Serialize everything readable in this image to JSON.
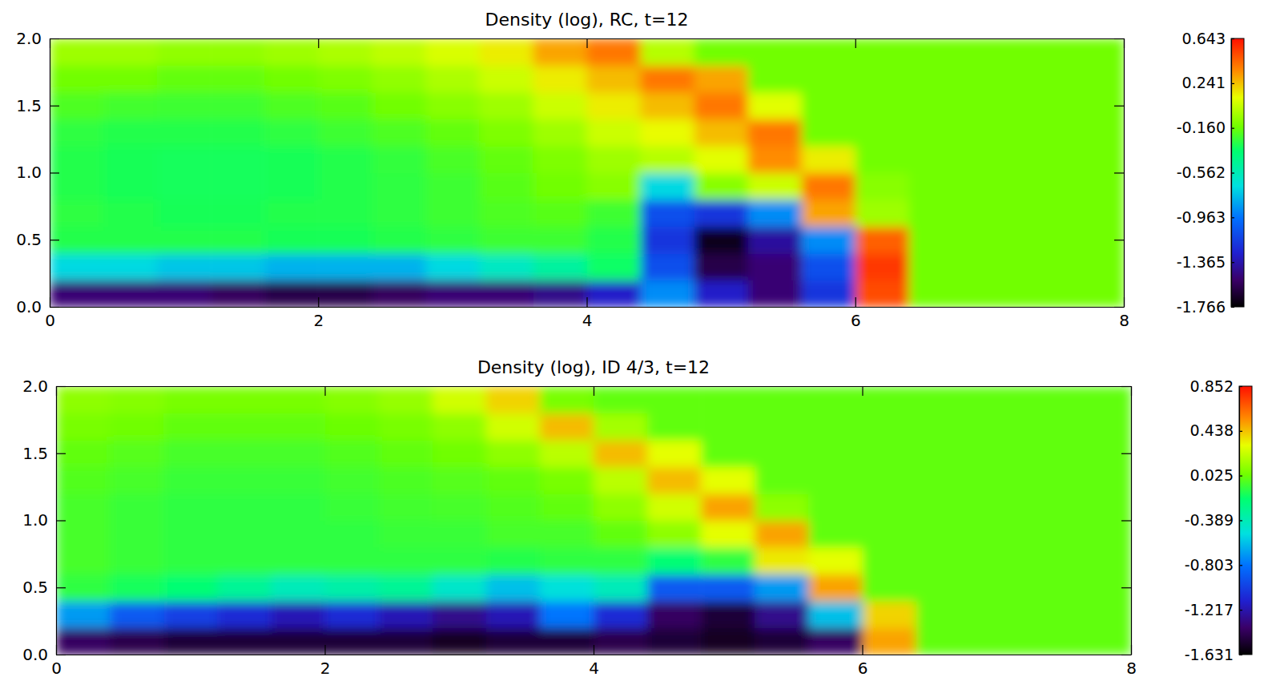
{
  "chart_data": [
    {
      "type": "heatmap",
      "title": "Density (log), RC, t=12",
      "x": [
        0.2,
        0.6,
        1.0,
        1.4,
        1.8,
        2.2,
        2.6,
        3.0,
        3.4,
        3.8,
        4.2,
        4.6,
        5.0,
        5.4,
        5.8,
        6.2,
        6.6,
        7.0,
        7.4,
        7.8
      ],
      "y": [
        0.1,
        0.3,
        0.5,
        0.7,
        0.9,
        1.1,
        1.3,
        1.5,
        1.7,
        1.9
      ],
      "values": [
        [
          -1.5,
          -1.5,
          -1.5,
          -1.55,
          -1.6,
          -1.6,
          -1.55,
          -1.5,
          -1.5,
          -1.45,
          -1.3,
          -0.9,
          -1.3,
          -1.5,
          -1.2,
          0.5,
          -0.15,
          -0.15,
          -0.15,
          -0.15
        ],
        [
          -0.7,
          -0.7,
          -0.75,
          -0.75,
          -0.8,
          -0.8,
          -0.8,
          -0.7,
          -0.6,
          -0.5,
          -0.35,
          -1.1,
          -1.6,
          -1.5,
          -1.1,
          0.55,
          -0.15,
          -0.15,
          -0.15,
          -0.15
        ],
        [
          -0.3,
          -0.3,
          -0.3,
          -0.3,
          -0.32,
          -0.32,
          -0.3,
          -0.28,
          -0.25,
          -0.25,
          -0.3,
          -1.2,
          -1.7,
          -1.4,
          -0.9,
          0.45,
          -0.15,
          -0.15,
          -0.15,
          -0.15
        ],
        [
          -0.28,
          -0.3,
          -0.32,
          -0.32,
          -0.3,
          -0.3,
          -0.28,
          -0.25,
          -0.22,
          -0.2,
          -0.25,
          -1.1,
          -1.2,
          -0.9,
          0.3,
          -0.05,
          -0.15,
          -0.15,
          -0.15,
          -0.15
        ],
        [
          -0.3,
          -0.32,
          -0.33,
          -0.33,
          -0.32,
          -0.3,
          -0.28,
          -0.25,
          -0.2,
          -0.15,
          -0.1,
          -0.7,
          -0.1,
          0.05,
          0.4,
          -0.1,
          -0.15,
          -0.15,
          -0.15,
          -0.15
        ],
        [
          -0.3,
          -0.32,
          -0.33,
          -0.33,
          -0.32,
          -0.3,
          -0.27,
          -0.23,
          -0.18,
          -0.12,
          -0.05,
          0.0,
          0.1,
          0.35,
          0.15,
          -0.15,
          -0.15,
          -0.15,
          -0.15,
          -0.15
        ],
        [
          -0.28,
          -0.3,
          -0.3,
          -0.3,
          -0.28,
          -0.25,
          -0.22,
          -0.18,
          -0.12,
          -0.05,
          0.05,
          0.12,
          0.25,
          0.4,
          -0.15,
          -0.15,
          -0.15,
          -0.15,
          -0.15,
          -0.15
        ],
        [
          -0.22,
          -0.24,
          -0.25,
          -0.25,
          -0.22,
          -0.2,
          -0.15,
          -0.1,
          -0.05,
          0.05,
          0.15,
          0.25,
          0.4,
          0.1,
          -0.15,
          -0.15,
          -0.15,
          -0.15,
          -0.15,
          -0.15
        ],
        [
          -0.15,
          -0.15,
          -0.18,
          -0.18,
          -0.15,
          -0.12,
          -0.08,
          -0.02,
          0.05,
          0.15,
          0.25,
          0.4,
          0.3,
          -0.15,
          -0.15,
          -0.15,
          -0.15,
          -0.15,
          -0.15,
          -0.15
        ],
        [
          -0.05,
          -0.05,
          -0.08,
          -0.08,
          -0.05,
          -0.02,
          0.02,
          0.08,
          0.15,
          0.3,
          0.4,
          0.0,
          -0.15,
          -0.15,
          -0.15,
          -0.15,
          -0.15,
          -0.15,
          -0.15,
          -0.15
        ]
      ],
      "xlim": [
        0,
        8
      ],
      "ylim": [
        0,
        2
      ],
      "xticks": [
        0,
        2,
        4,
        6,
        8
      ],
      "yticks": [
        {
          "value": 0,
          "label": "0.0"
        },
        0.5,
        {
          "value": 1,
          "label": "1.0"
        },
        1.5,
        {
          "value": 2,
          "label": "2.0"
        }
      ],
      "colorbar_range": [
        -1.766,
        0.643
      ],
      "colorbar_ticks": [
        0.643,
        0.241,
        {
          "value": -0.16,
          "label": "-0.160"
        },
        -0.562,
        -0.963,
        -1.365,
        -1.766
      ]
    },
    {
      "type": "heatmap",
      "title": "Density (log), ID 4/3, t=12",
      "x": [
        0.2,
        0.6,
        1.0,
        1.4,
        1.8,
        2.2,
        2.6,
        3.0,
        3.4,
        3.8,
        4.2,
        4.6,
        5.0,
        5.4,
        5.8,
        6.2,
        6.6,
        7.0,
        7.4,
        7.8
      ],
      "y": [
        0.1,
        0.3,
        0.5,
        0.7,
        0.9,
        1.1,
        1.3,
        1.5,
        1.7,
        1.9
      ],
      "values": [
        [
          -1.4,
          -1.45,
          -1.5,
          -1.5,
          -1.5,
          -1.5,
          -1.5,
          -1.55,
          -1.5,
          -1.5,
          -1.45,
          -1.5,
          -1.55,
          -1.5,
          -1.4,
          0.5,
          0,
          0,
          0,
          0
        ],
        [
          -0.7,
          -0.9,
          -1.0,
          -1.1,
          -1.2,
          -1.1,
          -1.2,
          -1.3,
          -1.2,
          -0.8,
          -1.1,
          -1.4,
          -1.5,
          -1.3,
          -0.6,
          0.4,
          0,
          0,
          0,
          0
        ],
        [
          -0.1,
          -0.15,
          -0.2,
          -0.3,
          -0.4,
          -0.35,
          -0.3,
          -0.45,
          -0.6,
          -0.5,
          -0.4,
          -0.9,
          -0.9,
          -0.7,
          0.5,
          0.0,
          0,
          0,
          0,
          0
        ],
        [
          -0.05,
          -0.08,
          -0.1,
          -0.1,
          -0.1,
          -0.1,
          -0.1,
          -0.1,
          -0.12,
          -0.1,
          -0.1,
          -0.2,
          -0.1,
          0.35,
          0.3,
          0,
          0,
          0,
          0,
          0
        ],
        [
          -0.05,
          -0.08,
          -0.1,
          -0.1,
          -0.1,
          -0.1,
          -0.08,
          -0.08,
          -0.05,
          -0.05,
          0.0,
          0.1,
          0.3,
          0.5,
          0,
          0,
          0,
          0,
          0,
          0
        ],
        [
          -0.05,
          -0.08,
          -0.1,
          -0.1,
          -0.1,
          -0.08,
          -0.06,
          -0.05,
          -0.03,
          0.0,
          0.1,
          0.25,
          0.5,
          0.1,
          0,
          0,
          0,
          0,
          0,
          0
        ],
        [
          -0.03,
          -0.05,
          -0.08,
          -0.08,
          -0.08,
          -0.06,
          -0.04,
          -0.02,
          0.0,
          0.05,
          0.2,
          0.45,
          0.3,
          0,
          0,
          0,
          0,
          0,
          0,
          0
        ],
        [
          0.0,
          -0.02,
          -0.05,
          -0.05,
          -0.05,
          -0.03,
          0.0,
          0.03,
          0.1,
          0.2,
          0.45,
          0.3,
          0,
          0,
          0,
          0,
          0,
          0,
          0,
          0
        ],
        [
          0.05,
          0.03,
          0.0,
          0.0,
          0.0,
          0.02,
          0.05,
          0.1,
          0.25,
          0.45,
          0.15,
          0,
          0,
          0,
          0,
          0,
          0,
          0,
          0,
          0
        ],
        [
          0.1,
          0.08,
          0.05,
          0.05,
          0.05,
          0.08,
          0.12,
          0.25,
          0.4,
          0.05,
          0,
          0,
          0,
          0,
          0,
          0,
          0,
          0,
          0,
          0
        ]
      ],
      "xlim": [
        0,
        8
      ],
      "ylim": [
        0,
        2
      ],
      "xticks": [
        0,
        2,
        4,
        6,
        8
      ],
      "yticks": [
        {
          "value": 0,
          "label": "0.0"
        },
        0.5,
        {
          "value": 1,
          "label": "1.0"
        },
        1.5,
        {
          "value": 2,
          "label": "2.0"
        }
      ],
      "colorbar_range": [
        -1.631,
        0.852
      ],
      "colorbar_ticks": [
        0.852,
        0.438,
        0.025,
        -0.389,
        -0.803,
        -1.217,
        -1.631
      ]
    }
  ]
}
